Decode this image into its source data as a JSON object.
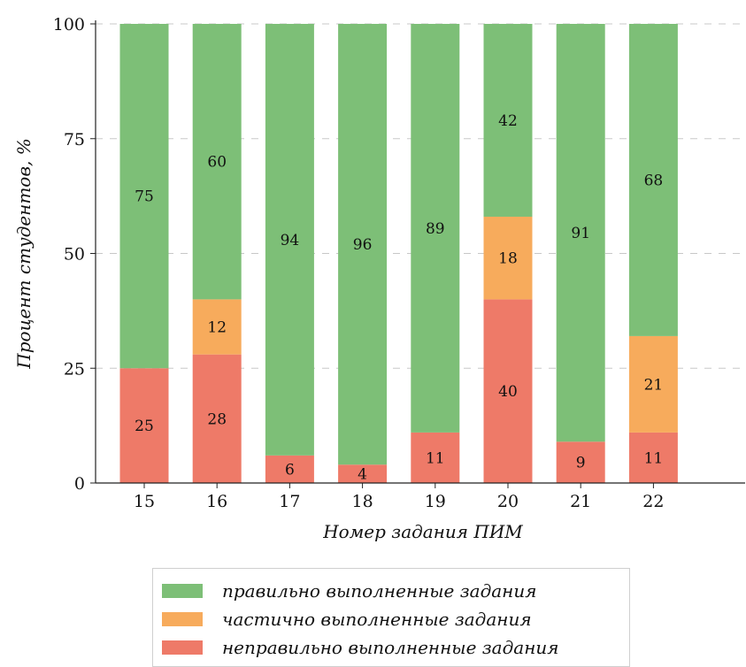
{
  "chart_data": {
    "type": "bar",
    "stacked": true,
    "title": "",
    "xlabel": "Номер задания ПИМ",
    "ylabel": "Процент студентов, %",
    "categories": [
      "15",
      "16",
      "17",
      "18",
      "19",
      "20",
      "21",
      "22"
    ],
    "ylim": [
      0,
      100
    ],
    "yticks": [
      "0",
      "25",
      "50",
      "75",
      "100"
    ],
    "grid": "horizontal dashed",
    "legend_position": "bottom",
    "series": [
      {
        "name": "неправильно выполненные задания",
        "color": "#ee7a68",
        "values": [
          25,
          28,
          6,
          4,
          11,
          40,
          9,
          11
        ]
      },
      {
        "name": "частично выполненные задания",
        "color": "#f7ab5c",
        "values": [
          0,
          12,
          0,
          0,
          0,
          18,
          0,
          21
        ]
      },
      {
        "name": "правильно выполненные задания",
        "color": "#7dbf77",
        "values": [
          75,
          60,
          94,
          96,
          89,
          42,
          91,
          68
        ]
      }
    ]
  },
  "legend": {
    "items": [
      {
        "label": "правильно выполненные задания",
        "color": "#7dbf77"
      },
      {
        "label": "частично выполненные задания",
        "color": "#f7ab5c"
      },
      {
        "label": "неправильно выполненные задания",
        "color": "#ee7a68"
      }
    ]
  }
}
